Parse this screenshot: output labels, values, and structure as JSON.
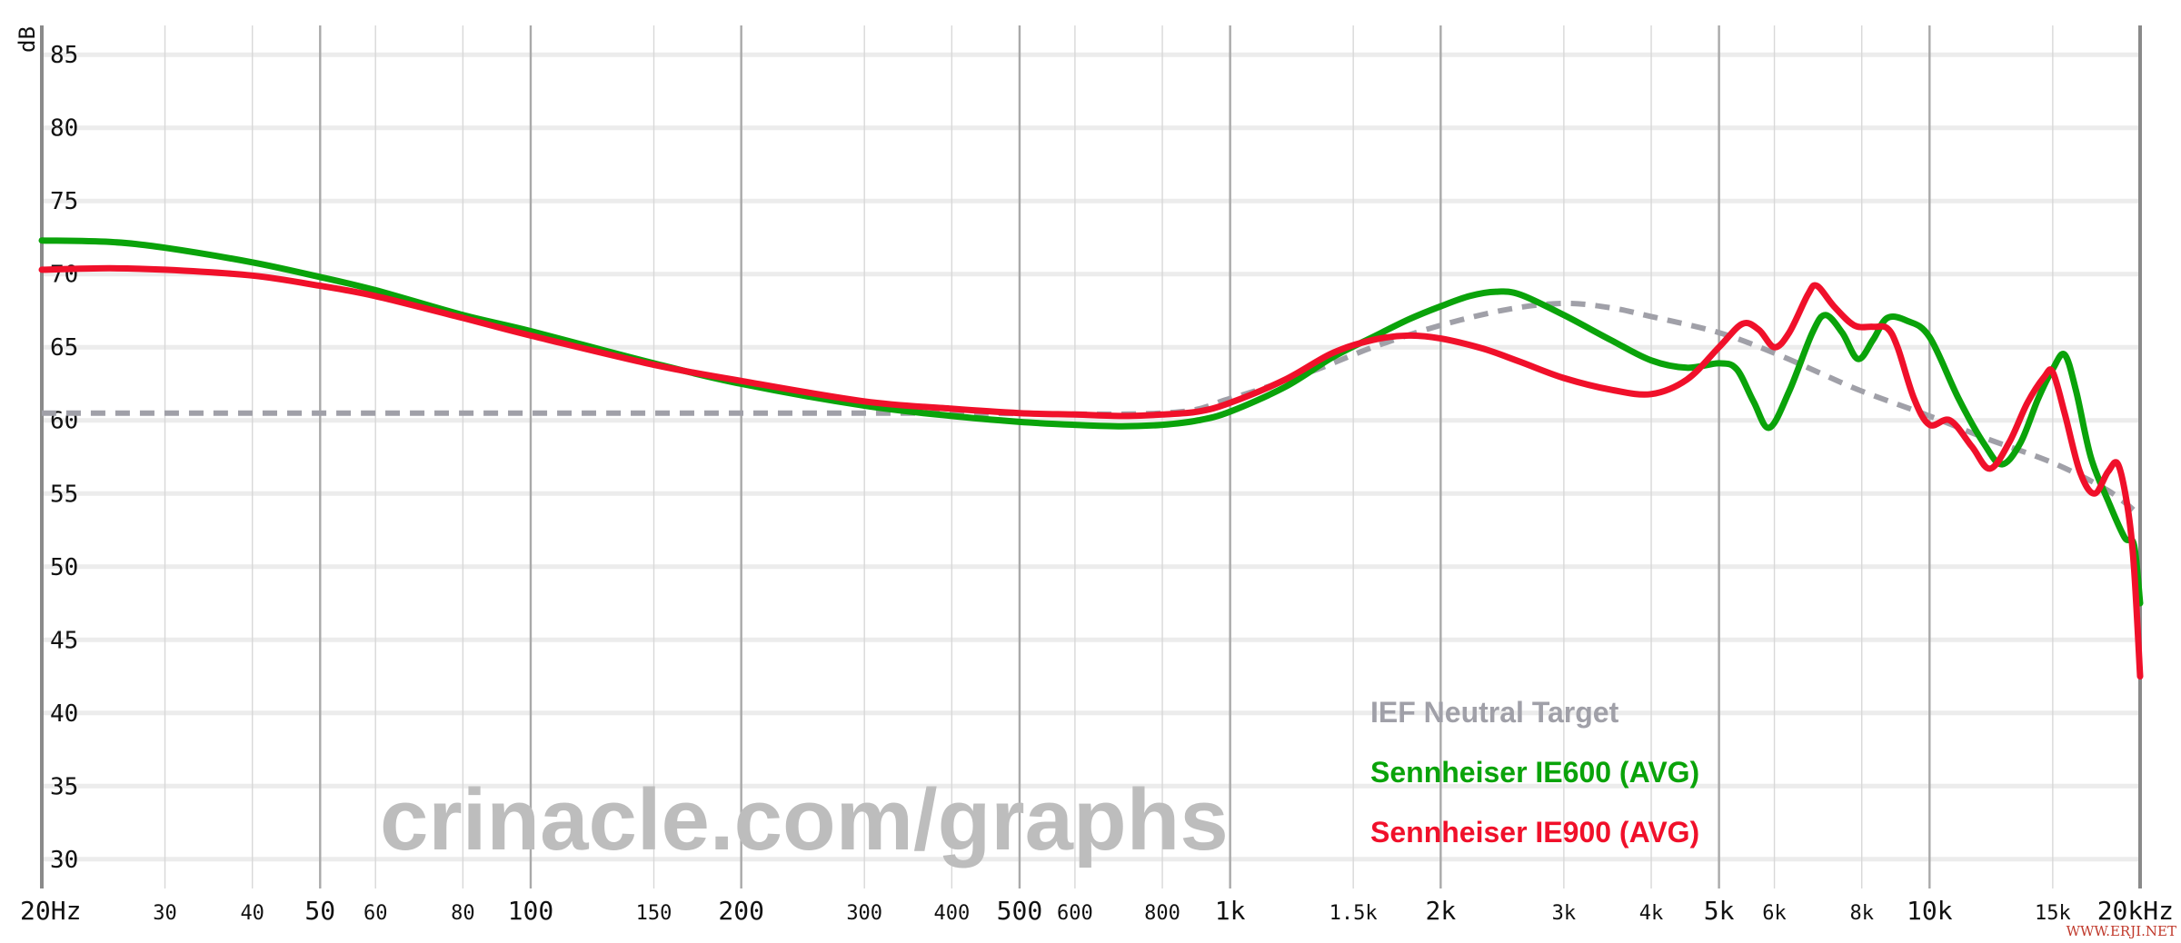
{
  "chart_data": {
    "type": "line",
    "title": "",
    "ylabel": "dB",
    "xlabel": "",
    "x_scale": "log",
    "xlim": [
      20,
      20000
    ],
    "ylim": [
      28,
      87
    ],
    "y_ticks": [
      85,
      80,
      75,
      70,
      65,
      60,
      55,
      50,
      45,
      40,
      35,
      30
    ],
    "x_ticks": [
      {
        "label": "20Hz",
        "value": 20,
        "major": true
      },
      {
        "label": "30",
        "value": 30,
        "major": false
      },
      {
        "label": "40",
        "value": 40,
        "major": false
      },
      {
        "label": "50",
        "value": 50,
        "major": true
      },
      {
        "label": "60",
        "value": 60,
        "major": false
      },
      {
        "label": "80",
        "value": 80,
        "major": false
      },
      {
        "label": "100",
        "value": 100,
        "major": true
      },
      {
        "label": "150",
        "value": 150,
        "major": false
      },
      {
        "label": "200",
        "value": 200,
        "major": true
      },
      {
        "label": "300",
        "value": 300,
        "major": false
      },
      {
        "label": "400",
        "value": 400,
        "major": false
      },
      {
        "label": "500",
        "value": 500,
        "major": true
      },
      {
        "label": "600",
        "value": 600,
        "major": false
      },
      {
        "label": "800",
        "value": 800,
        "major": false
      },
      {
        "label": "1k",
        "value": 1000,
        "major": true
      },
      {
        "label": "1.5k",
        "value": 1500,
        "major": false
      },
      {
        "label": "2k",
        "value": 2000,
        "major": true
      },
      {
        "label": "3k",
        "value": 3000,
        "major": false
      },
      {
        "label": "4k",
        "value": 4000,
        "major": false
      },
      {
        "label": "5k",
        "value": 5000,
        "major": true
      },
      {
        "label": "6k",
        "value": 6000,
        "major": false
      },
      {
        "label": "8k",
        "value": 8000,
        "major": false
      },
      {
        "label": "10k",
        "value": 10000,
        "major": true
      },
      {
        "label": "15k",
        "value": 15000,
        "major": false
      },
      {
        "label": "20kHz",
        "value": 20000,
        "major": true
      }
    ],
    "grid": true,
    "legend_position": "bottom-right",
    "series": [
      {
        "name": "IEF Neutral Target",
        "color": "#a0a0a8",
        "dashed": true,
        "points": [
          [
            20,
            60.5
          ],
          [
            100,
            60.5
          ],
          [
            200,
            60.5
          ],
          [
            400,
            60.5
          ],
          [
            800,
            60.5
          ],
          [
            1000,
            61.5
          ],
          [
            1300,
            63.3
          ],
          [
            1600,
            65.0
          ],
          [
            2000,
            66.5
          ],
          [
            2500,
            67.6
          ],
          [
            3000,
            68.0
          ],
          [
            3500,
            67.7
          ],
          [
            4000,
            67.1
          ],
          [
            5000,
            66.0
          ],
          [
            6000,
            64.6
          ],
          [
            7000,
            63.2
          ],
          [
            8000,
            62.0
          ],
          [
            10000,
            60.3
          ],
          [
            12000,
            58.8
          ],
          [
            15000,
            57.1
          ],
          [
            18000,
            55.2
          ],
          [
            20000,
            53.5
          ]
        ]
      },
      {
        "name": "Sennheiser IE600 (AVG)",
        "color": "#0aa30a",
        "dashed": false,
        "points": [
          [
            20,
            72.3
          ],
          [
            25,
            72.2
          ],
          [
            30,
            71.8
          ],
          [
            40,
            70.8
          ],
          [
            50,
            69.8
          ],
          [
            60,
            68.9
          ],
          [
            80,
            67.2
          ],
          [
            100,
            66.1
          ],
          [
            150,
            63.9
          ],
          [
            200,
            62.5
          ],
          [
            300,
            61.0
          ],
          [
            400,
            60.3
          ],
          [
            500,
            59.9
          ],
          [
            600,
            59.7
          ],
          [
            700,
            59.6
          ],
          [
            800,
            59.7
          ],
          [
            900,
            60.0
          ],
          [
            1000,
            60.6
          ],
          [
            1200,
            62.3
          ],
          [
            1400,
            64.3
          ],
          [
            1600,
            65.7
          ],
          [
            1800,
            66.9
          ],
          [
            2000,
            67.8
          ],
          [
            2200,
            68.5
          ],
          [
            2400,
            68.8
          ],
          [
            2600,
            68.6
          ],
          [
            3000,
            67.2
          ],
          [
            3500,
            65.5
          ],
          [
            4000,
            64.1
          ],
          [
            4500,
            63.6
          ],
          [
            5000,
            63.9
          ],
          [
            5300,
            63.5
          ],
          [
            5600,
            61.3
          ],
          [
            5900,
            59.5
          ],
          [
            6300,
            62.0
          ],
          [
            6800,
            66.0
          ],
          [
            7100,
            67.2
          ],
          [
            7500,
            66.0
          ],
          [
            7900,
            64.2
          ],
          [
            8300,
            65.5
          ],
          [
            8700,
            67.0
          ],
          [
            9300,
            66.8
          ],
          [
            10000,
            65.7
          ],
          [
            11000,
            61.5
          ],
          [
            12000,
            58.3
          ],
          [
            12700,
            57.0
          ],
          [
            13500,
            58.5
          ],
          [
            14300,
            61.5
          ],
          [
            15000,
            63.5
          ],
          [
            15600,
            64.5
          ],
          [
            16200,
            62.0
          ],
          [
            17000,
            57.5
          ],
          [
            18000,
            54.5
          ],
          [
            19000,
            52.0
          ],
          [
            19600,
            51.5
          ],
          [
            20000,
            47.5
          ]
        ]
      },
      {
        "name": "Sennheiser IE900 (AVG)",
        "color": "#f0102a",
        "dashed": false,
        "points": [
          [
            20,
            70.3
          ],
          [
            25,
            70.4
          ],
          [
            30,
            70.3
          ],
          [
            40,
            69.9
          ],
          [
            50,
            69.2
          ],
          [
            60,
            68.5
          ],
          [
            80,
            67.0
          ],
          [
            100,
            65.8
          ],
          [
            150,
            63.8
          ],
          [
            200,
            62.7
          ],
          [
            300,
            61.3
          ],
          [
            400,
            60.8
          ],
          [
            500,
            60.5
          ],
          [
            600,
            60.4
          ],
          [
            700,
            60.3
          ],
          [
            800,
            60.4
          ],
          [
            900,
            60.6
          ],
          [
            1000,
            61.2
          ],
          [
            1200,
            62.8
          ],
          [
            1400,
            64.6
          ],
          [
            1600,
            65.5
          ],
          [
            1800,
            65.8
          ],
          [
            2000,
            65.6
          ],
          [
            2300,
            64.9
          ],
          [
            2600,
            64.0
          ],
          [
            3000,
            62.9
          ],
          [
            3500,
            62.1
          ],
          [
            4000,
            61.8
          ],
          [
            4500,
            62.8
          ],
          [
            5000,
            65.0
          ],
          [
            5400,
            66.6
          ],
          [
            5700,
            66.2
          ],
          [
            6000,
            65.0
          ],
          [
            6300,
            66.0
          ],
          [
            6700,
            68.6
          ],
          [
            6900,
            69.2
          ],
          [
            7300,
            67.8
          ],
          [
            7800,
            66.5
          ],
          [
            8300,
            66.4
          ],
          [
            8700,
            66.3
          ],
          [
            9000,
            65.0
          ],
          [
            9500,
            61.5
          ],
          [
            10000,
            59.7
          ],
          [
            10700,
            60.0
          ],
          [
            11500,
            58.2
          ],
          [
            12200,
            56.7
          ],
          [
            13000,
            58.5
          ],
          [
            13800,
            61.2
          ],
          [
            14600,
            63.0
          ],
          [
            15000,
            63.3
          ],
          [
            15600,
            60.5
          ],
          [
            16400,
            56.5
          ],
          [
            17200,
            55.0
          ],
          [
            18000,
            56.5
          ],
          [
            18600,
            57.0
          ],
          [
            19200,
            54.0
          ],
          [
            19600,
            50.0
          ],
          [
            20000,
            42.5
          ]
        ]
      }
    ]
  },
  "watermark": "crinacle.com/graphs",
  "corner_mark": "WWW.ERJI.NET"
}
